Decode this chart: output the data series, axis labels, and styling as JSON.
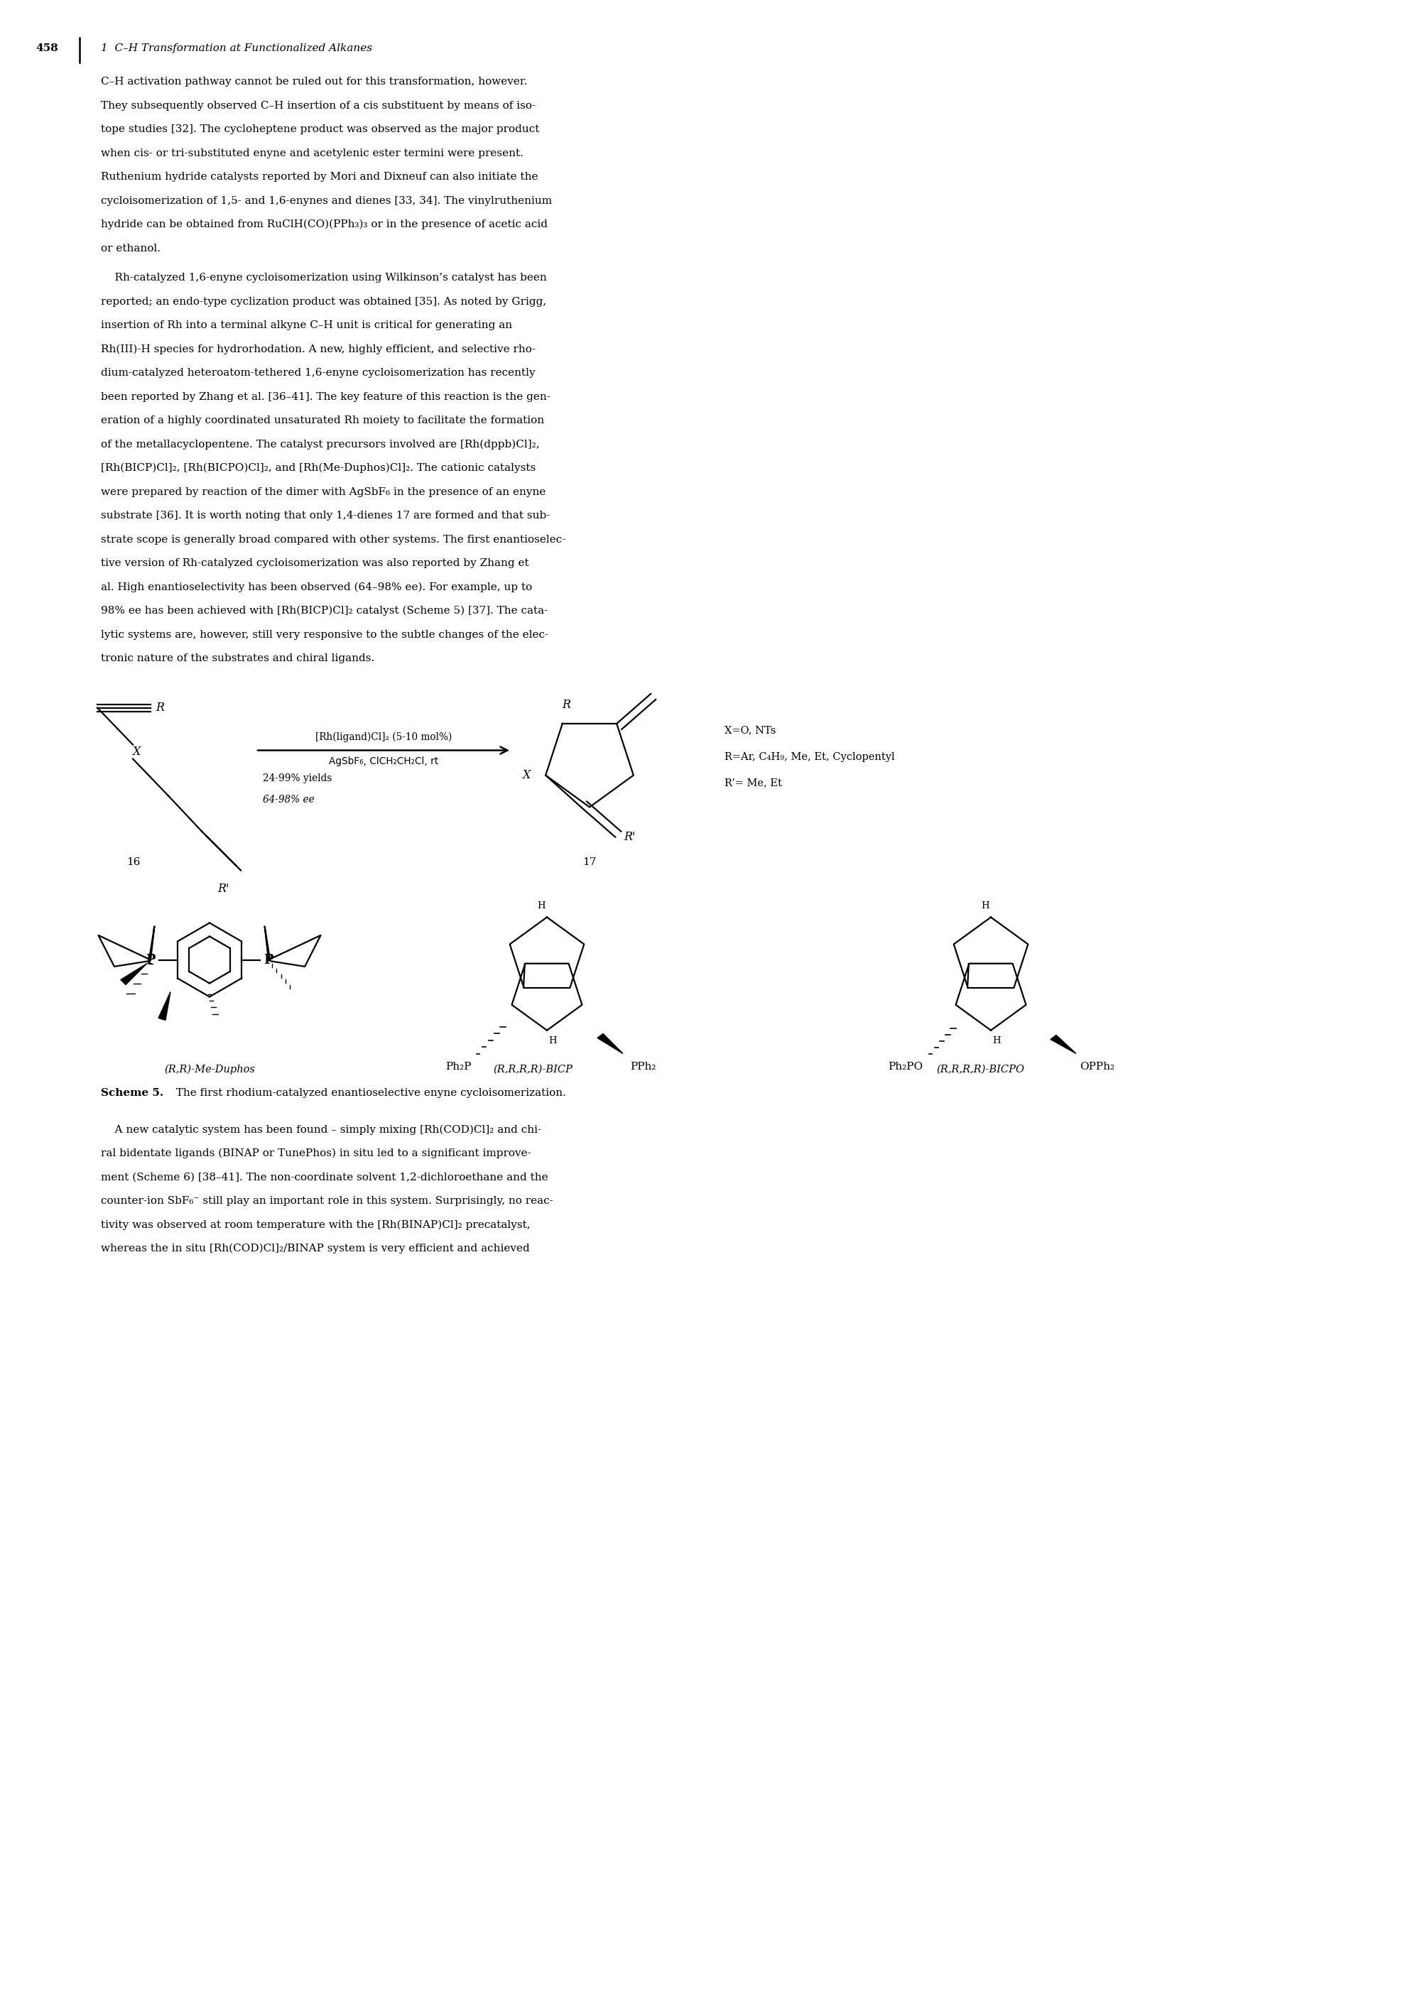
{
  "page_width": 20.09,
  "page_height": 28.33,
  "background_color": "#ffffff",
  "page_number": "458",
  "header_text": "1  C–H Transformation at Functionalized Alkanes",
  "para1_lines": [
    "C–H activation pathway cannot be ruled out for this transformation, however.",
    "They subsequently observed C–H insertion of a cis substituent by means of iso-",
    "tope studies [32]. The cycloheptene product was observed as the major product",
    "when cis- or tri-substituted enyne and acetylenic ester termini were present.",
    "Ruthenium hydride catalysts reported by Mori and Dixneuf can also initiate the",
    "cycloisomerization of 1,5- and 1,6-enynes and dienes [33, 34]. The vinylruthenium",
    "hydride can be obtained from RuClH(CO)(PPh₃)₃ or in the presence of acetic acid",
    "or ethanol."
  ],
  "para2_lines": [
    "    Rh-catalyzed 1,6-enyne cycloisomerization using Wilkinson’s catalyst has been",
    "reported; an endo-type cyclization product was obtained [35]. As noted by Grigg,",
    "insertion of Rh into a terminal alkyne C–H unit is critical for generating an",
    "Rh(III)-H species for hydrorhodation. A new, highly efficient, and selective rho-",
    "dium-catalyzed heteroatom-tethered 1,6-enyne cycloisomerization has recently",
    "been reported by Zhang et al. [36–41]. The key feature of this reaction is the gen-",
    "eration of a highly coordinated unsaturated Rh moiety to facilitate the formation",
    "of the metallacyclopentene. The catalyst precursors involved are [Rh(dppb)Cl]₂,",
    "[Rh(BICP)Cl]₂, [Rh(BICPO)Cl]₂, and [Rh(Me-Duphos)Cl]₂. The cationic catalysts",
    "were prepared by reaction of the dimer with AgSbF₆ in the presence of an enyne",
    "substrate [36]. It is worth noting that only 1,4-dienes 17 are formed and that sub-",
    "strate scope is generally broad compared with other systems. The first enantioselec-",
    "tive version of Rh-catalyzed cycloisomerization was also reported by Zhang et",
    "al. High enantioselectivity has been observed (64–98% ee). For example, up to",
    "98% ee has been achieved with [Rh(BICP)Cl]₂ catalyst (Scheme 5) [37]. The cata-",
    "lytic systems are, however, still very responsive to the subtle changes of the elec-",
    "tronic nature of the substrates and chiral ligands."
  ],
  "footer_lines": [
    "    A new catalytic system has been found – simply mixing [Rh(COD)Cl]₂ and chi-",
    "ral bidentate ligands (BINAP or TunePhos) in situ led to a significant improve-",
    "ment (Scheme 6) [38–41]. The non-coordinate solvent 1,2-dichloroethane and the",
    "counter-ion SbF₆⁻ still play an important role in this system. Surprisingly, no reac-",
    "tivity was observed at room temperature with the [Rh(BINAP)Cl]₂ precatalyst,",
    "whereas the in situ [Rh(COD)Cl]₂/BINAP system is very efficient and achieved"
  ],
  "scheme_caption_bold": "Scheme 5.",
  "scheme_caption_rest": "  The first rhodium-catalyzed enantioselective enyne cycloisomerization.",
  "cond_line1": "[Rh(ligand)Cl]₂ (5-10 mol%)",
  "cond_line2": "AgSbF₆, ClCH₂CH₂Cl, rt",
  "cond_line3": "24-99% yields",
  "cond_line4": "64-98% ee",
  "info_line1": "X=O, NTs",
  "info_line2": "R=Ar, C₄H₉, Me, Et, Cyclopentyl",
  "info_line3": "R’= Me, Et",
  "label16": "16",
  "label17": "17",
  "cat1_label": "(R,R)-Me-Duphos",
  "cat2_label": "(R,R,R,R)-BICP",
  "cat3_label": "(R,R,R,R)-BICPO"
}
